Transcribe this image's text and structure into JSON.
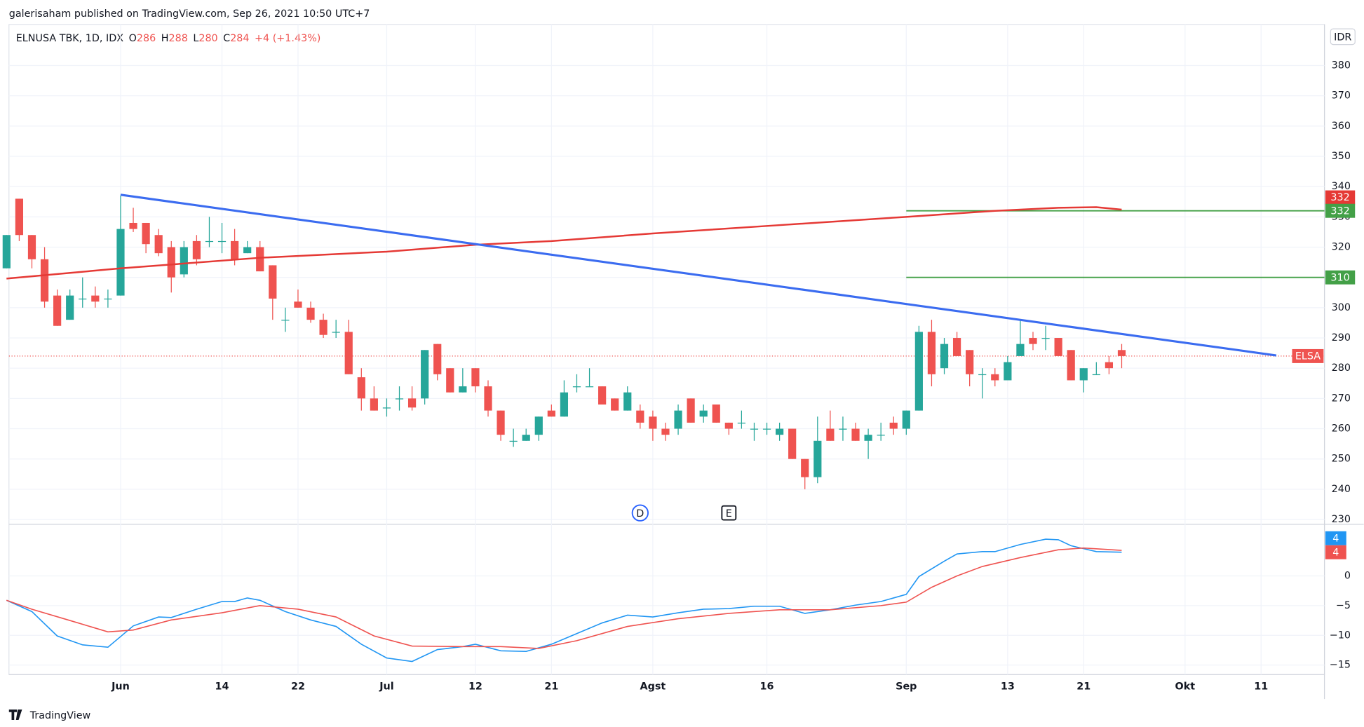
{
  "chart_data": {
    "type": "candlestick",
    "published": "galerisaham published on TradingView.com, Sep 26, 2021 10:50 UTC+7",
    "symbol": "ELNUSA TBK, 1D, IDX",
    "ohlc_labels": [
      "O",
      "H",
      "L",
      "C"
    ],
    "change": "+4 (+1.43%)",
    "currency": "IDR",
    "symbol_short": "ELSA",
    "brand": "TradingView",
    "up_color": "#26a69a",
    "down_color": "#ef5350",
    "xlim": [
      -0.5,
      104
    ],
    "xticks": [
      {
        "value": 9,
        "label": "Jun"
      },
      {
        "value": 17,
        "label": "14"
      },
      {
        "value": 23,
        "label": "22"
      },
      {
        "value": 30,
        "label": "Jul"
      },
      {
        "value": 37,
        "label": "12"
      },
      {
        "value": 43,
        "label": "21"
      },
      {
        "value": 51,
        "label": "Agst"
      },
      {
        "value": 60,
        "label": "16"
      },
      {
        "value": 71,
        "label": "Sep"
      },
      {
        "value": 79,
        "label": "13"
      },
      {
        "value": 85,
        "label": "21"
      },
      {
        "value": 93,
        "label": "Okt"
      },
      {
        "value": 99,
        "label": "11"
      }
    ],
    "ylim": [
      229,
      393
    ],
    "yticks": [
      230,
      240,
      250,
      260,
      270,
      280,
      290,
      300,
      310,
      320,
      330,
      340,
      350,
      360,
      370,
      380
    ],
    "candles": [
      [
        313,
        324,
        313,
        324
      ],
      [
        336,
        336,
        322,
        324
      ],
      [
        324,
        324,
        313,
        316
      ],
      [
        316,
        320,
        300,
        302
      ],
      [
        304,
        306,
        294,
        294
      ],
      [
        296,
        306,
        296,
        304
      ],
      [
        303,
        310,
        300,
        303
      ],
      [
        304,
        307,
        300,
        302
      ],
      [
        303,
        306,
        300,
        303
      ],
      [
        304,
        337,
        304,
        326
      ],
      [
        328,
        333,
        325,
        326
      ],
      [
        328,
        328,
        318,
        321
      ],
      [
        324,
        326,
        317,
        318
      ],
      [
        320,
        322,
        305,
        310
      ],
      [
        311,
        322,
        310,
        320
      ],
      [
        322,
        324,
        314,
        316
      ],
      [
        322,
        330,
        320,
        322
      ],
      [
        322,
        328,
        318,
        322
      ],
      [
        322,
        326,
        314,
        316
      ],
      [
        318,
        322,
        318,
        320
      ],
      [
        320,
        322,
        312,
        312
      ],
      [
        314,
        314,
        296,
        303
      ],
      [
        296,
        300,
        292,
        296
      ],
      [
        302,
        306,
        300,
        300
      ],
      [
        300,
        302,
        295,
        296
      ],
      [
        296,
        298,
        290,
        291
      ],
      [
        292,
        296,
        290,
        292
      ],
      [
        292,
        296,
        278,
        278
      ],
      [
        277,
        280,
        266,
        270
      ],
      [
        270,
        274,
        266,
        266
      ],
      [
        267,
        270,
        264,
        267
      ],
      [
        270,
        274,
        266,
        270
      ],
      [
        270,
        274,
        266,
        267
      ],
      [
        270,
        286,
        268,
        286
      ],
      [
        288,
        288,
        276,
        278
      ],
      [
        280,
        280,
        272,
        272
      ],
      [
        272,
        280,
        272,
        274
      ],
      [
        280,
        280,
        272,
        274
      ],
      [
        274,
        276,
        264,
        266
      ],
      [
        266,
        266,
        256,
        258
      ],
      [
        256,
        260,
        254,
        256
      ],
      [
        256,
        260,
        256,
        258
      ],
      [
        258,
        264,
        256,
        264
      ],
      [
        266,
        268,
        264,
        264
      ],
      [
        264,
        276,
        264,
        272
      ],
      [
        274,
        278,
        272,
        274
      ],
      [
        274,
        280,
        274,
        274
      ],
      [
        274,
        274,
        268,
        268
      ],
      [
        270,
        270,
        266,
        266
      ],
      [
        266,
        274,
        266,
        272
      ],
      [
        266,
        268,
        260,
        262
      ],
      [
        264,
        266,
        256,
        260
      ],
      [
        260,
        262,
        256,
        258
      ],
      [
        260,
        268,
        258,
        266
      ],
      [
        270,
        270,
        262,
        262
      ],
      [
        264,
        268,
        262,
        266
      ],
      [
        268,
        268,
        262,
        262
      ],
      [
        262,
        262,
        258,
        260
      ],
      [
        262,
        266,
        260,
        262
      ],
      [
        260,
        262,
        256,
        260
      ],
      [
        260,
        262,
        258,
        260
      ],
      [
        258,
        262,
        256,
        260
      ],
      [
        260,
        260,
        250,
        250
      ],
      [
        250,
        250,
        240,
        244
      ],
      [
        244,
        264,
        242,
        256
      ],
      [
        260,
        266,
        256,
        256
      ],
      [
        260,
        264,
        256,
        260
      ],
      [
        260,
        262,
        256,
        256
      ],
      [
        256,
        260,
        250,
        258
      ],
      [
        258,
        262,
        256,
        258
      ],
      [
        262,
        264,
        258,
        260
      ],
      [
        260,
        266,
        258,
        266
      ],
      [
        266,
        294,
        266,
        292
      ],
      [
        292,
        296,
        274,
        278
      ],
      [
        280,
        290,
        278,
        288
      ],
      [
        290,
        292,
        284,
        284
      ],
      [
        286,
        286,
        274,
        278
      ],
      [
        278,
        280,
        270,
        278
      ],
      [
        278,
        280,
        274,
        276
      ],
      [
        276,
        284,
        276,
        282
      ],
      [
        284,
        296,
        284,
        288
      ],
      [
        290,
        292,
        286,
        288
      ],
      [
        290,
        294,
        286,
        290
      ],
      [
        290,
        290,
        284,
        284
      ],
      [
        286,
        286,
        276,
        276
      ],
      [
        276,
        280,
        272,
        280
      ],
      [
        278,
        282,
        278,
        278
      ],
      [
        282,
        284,
        278,
        280
      ],
      [
        286,
        288,
        280,
        284
      ]
    ],
    "ma": {
      "color": "#e53935",
      "label": "332",
      "x": [
        0,
        9,
        20,
        30,
        37,
        43,
        51,
        60,
        71,
        78,
        83,
        86,
        88
      ],
      "values": [
        309.6,
        313,
        316.5,
        318.5,
        320.8,
        322,
        324.5,
        327,
        330,
        332,
        333,
        333.2,
        332.4
      ]
    },
    "trendline": {
      "color": "#3b6cf0",
      "x": [
        9,
        100.2
      ],
      "values": [
        337.3,
        284.2
      ]
    },
    "levels": [
      {
        "value": 332,
        "from": 71,
        "color": "#43a047"
      },
      {
        "value": 310,
        "from": 71,
        "color": "#43a047"
      }
    ],
    "events": [
      {
        "x": 50,
        "label": "D",
        "color": "#2962ff"
      },
      {
        "x": 57,
        "label": "E",
        "color": "#131722"
      }
    ],
    "macd": {
      "ylim": [
        -16.6,
        8.7
      ],
      "yticks": [
        0,
        {
          "value": -5,
          "label": "−5"
        },
        {
          "value": -10,
          "label": "−10"
        },
        {
          "value": -15,
          "label": "−15"
        }
      ],
      "series": [
        {
          "color": "#2196f3",
          "label": "4",
          "x": [
            0,
            2,
            4,
            6,
            8,
            10,
            12,
            13,
            15,
            17,
            18,
            19,
            20,
            22,
            24,
            26,
            28,
            30,
            32,
            34,
            36,
            37,
            39,
            41,
            43,
            45,
            47,
            49,
            51,
            53,
            55,
            57,
            59,
            61,
            63,
            65,
            67,
            69,
            71,
            72,
            74,
            75,
            77,
            78,
            80,
            82,
            83,
            84,
            85,
            86,
            88
          ],
          "values": [
            -4.1,
            -6,
            -10.1,
            -11.6,
            -12,
            -8.4,
            -6.9,
            -7,
            -5.6,
            -4.3,
            -4.3,
            -3.7,
            -4.1,
            -6,
            -7.4,
            -8.5,
            -11.5,
            -13.8,
            -14.4,
            -12.4,
            -11.9,
            -11.5,
            -12.6,
            -12.7,
            -11.5,
            -9.7,
            -7.9,
            -6.6,
            -6.9,
            -6.2,
            -5.6,
            -5.5,
            -5.1,
            -5.1,
            -6.3,
            -5.7,
            -4.9,
            -4.3,
            -3.1,
            -0.1,
            2.5,
            3.7,
            4.1,
            4.1,
            5.3,
            6.2,
            6.1,
            5.1,
            4.6,
            4.1,
            4
          ]
        },
        {
          "color": "#ef5350",
          "label": "4",
          "x": [
            0,
            2,
            5,
            8,
            10,
            13,
            17,
            20,
            23,
            26,
            29,
            32,
            36,
            39,
            42,
            45,
            49,
            53,
            57,
            61,
            65,
            69,
            71,
            73,
            75,
            77,
            80,
            83,
            85,
            88
          ],
          "values": [
            -4.1,
            -5.6,
            -7.5,
            -9.4,
            -9.1,
            -7.4,
            -6.2,
            -5,
            -5.6,
            -6.9,
            -10.1,
            -11.8,
            -11.9,
            -11.9,
            -12.2,
            -10.9,
            -8.5,
            -7.2,
            -6.3,
            -5.7,
            -5.7,
            -5,
            -4.4,
            -1.9,
            0,
            1.6,
            3.1,
            4.4,
            4.7,
            4.3
          ]
        }
      ]
    }
  }
}
